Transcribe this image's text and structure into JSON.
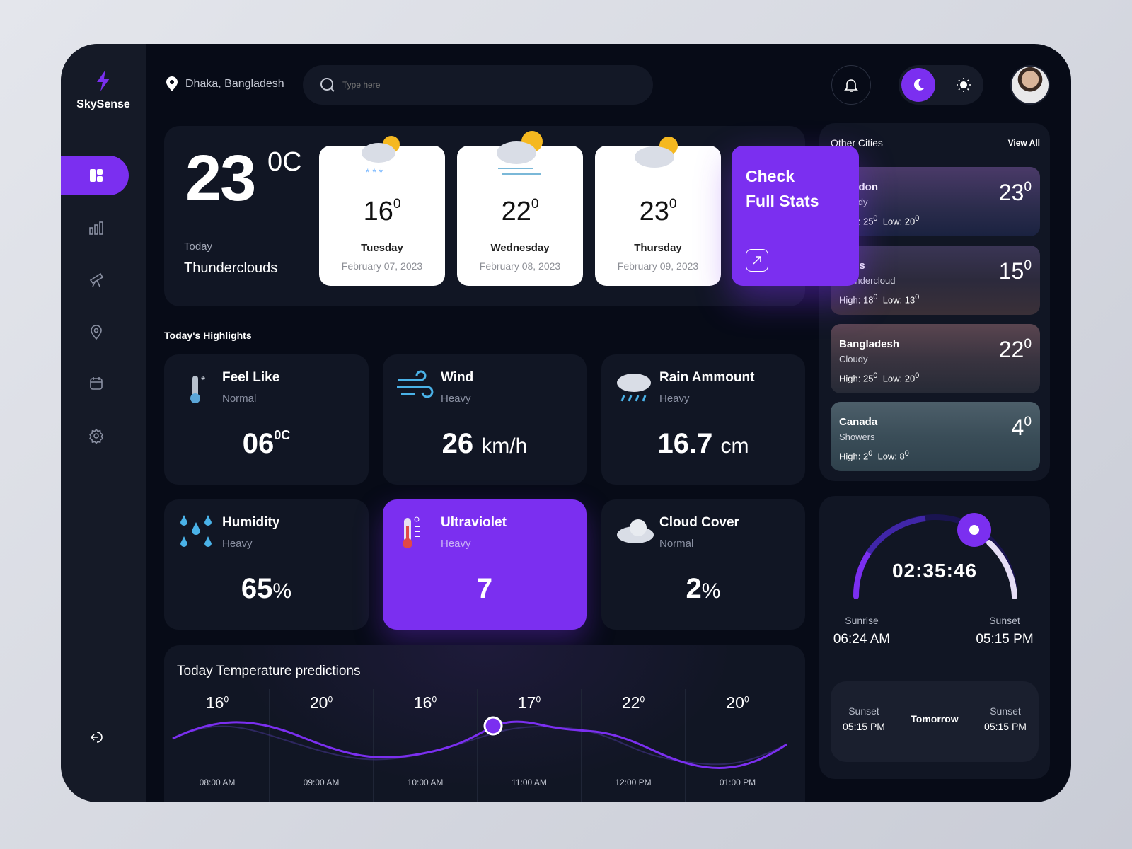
{
  "app": {
    "name": "SkySense"
  },
  "header": {
    "location": "Dhaka, Bangladesh",
    "search_placeholder": "Type here"
  },
  "current": {
    "temp": "23",
    "unit": "0C",
    "day_label": "Today",
    "condition": "Thunderclouds"
  },
  "forecast": [
    {
      "temp": "16",
      "deg": "0",
      "day": "Tuesday",
      "date": "February 07, 2023",
      "icon": "snow-cloud-sun-icon"
    },
    {
      "temp": "22",
      "deg": "0",
      "day": "Wednesday",
      "date": "February 08, 2023",
      "icon": "wind-cloud-sun-icon"
    },
    {
      "temp": "23",
      "deg": "0",
      "day": "Thursday",
      "date": "February 09, 2023",
      "icon": "cloud-sun-icon"
    }
  ],
  "full_stats": {
    "label_line1": "Check",
    "label_line2": "Full Stats"
  },
  "highlights": {
    "title": "Today's Highlights",
    "items": [
      {
        "title": "Feel Like",
        "sub": "Normal",
        "value": "06",
        "unit": "0C"
      },
      {
        "title": "Wind",
        "sub": "Heavy",
        "value": "26",
        "unit": "km/h"
      },
      {
        "title": "Rain Ammount",
        "sub": "Heavy",
        "value": "16.7",
        "unit": "cm"
      },
      {
        "title": "Humidity",
        "sub": "Heavy",
        "value": "65",
        "unit": "%"
      },
      {
        "title": "Ultraviolet",
        "sub": "Heavy",
        "value": "7",
        "unit": ""
      },
      {
        "title": "Cloud Cover",
        "sub": "Normal",
        "value": "2",
        "unit": "%"
      }
    ]
  },
  "predictions": {
    "title": "Today Temperature predictions",
    "items": [
      {
        "temp": "16",
        "deg": "0",
        "time": "08:00 AM"
      },
      {
        "temp": "20",
        "deg": "0",
        "time": "09:00 AM"
      },
      {
        "temp": "16",
        "deg": "0",
        "time": "10:00 AM"
      },
      {
        "temp": "17",
        "deg": "0",
        "time": "11:00 AM"
      },
      {
        "temp": "22",
        "deg": "0",
        "time": "12:00 PM"
      },
      {
        "temp": "20",
        "deg": "0",
        "time": "01:00 PM"
      }
    ]
  },
  "cities": {
    "title": "Other Cities",
    "view_all": "View All",
    "items": [
      {
        "name": "London",
        "cond": "Cloudy",
        "high": "High: 25",
        "low": "Low: 20",
        "temp": "23",
        "deg": "0"
      },
      {
        "name": "Paris",
        "cond": "Thundercloud",
        "high": "High: 18",
        "low": "Low: 13",
        "temp": "15",
        "deg": "0"
      },
      {
        "name": "Bangladesh",
        "cond": "Cloudy",
        "high": "High: 25",
        "low": "Low: 20",
        "temp": "22",
        "deg": "0"
      },
      {
        "name": "Canada",
        "cond": "Showers",
        "high": "High: 2",
        "low": "Low: 8",
        "temp": "4",
        "deg": "0"
      }
    ]
  },
  "sun": {
    "countdown": "02:35:46",
    "progress": 0.72,
    "sunrise_label": "Sunrise",
    "sunrise": "06:24 AM",
    "sunset_label": "Sunset",
    "sunset": "05:15 PM",
    "tomorrow": {
      "label": "Tomorrow",
      "left_label": "Sunset",
      "left_time": "05:15 PM",
      "right_label": "Sunset",
      "right_time": "05:15 PM"
    }
  },
  "colors": {
    "accent": "#7b2ff0",
    "background": "#070b17",
    "panel": "#111624"
  }
}
